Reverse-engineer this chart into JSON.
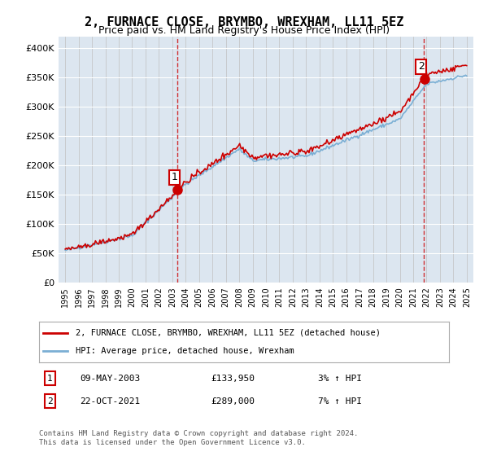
{
  "title": "2, FURNACE CLOSE, BRYMBO, WREXHAM, LL11 5EZ",
  "subtitle": "Price paid vs. HM Land Registry's House Price Index (HPI)",
  "hpi_label": "HPI: Average price, detached house, Wrexham",
  "price_label": "2, FURNACE CLOSE, BRYMBO, WREXHAM, LL11 5EZ (detached house)",
  "transaction1_date": "09-MAY-2003",
  "transaction1_price": 133950,
  "transaction1_hpi": "3% ↑ HPI",
  "transaction2_date": "22-OCT-2021",
  "transaction2_price": 289000,
  "transaction2_hpi": "7% ↑ HPI",
  "background_color": "#dce6f0",
  "plot_bg_color": "#dce6f0",
  "hpi_line_color": "#7bafd4",
  "price_line_color": "#cc0000",
  "dashed_line_color": "#cc0000",
  "ylim_min": 0,
  "ylim_max": 420000,
  "yticks": [
    0,
    50000,
    100000,
    150000,
    200000,
    250000,
    300000,
    350000,
    400000
  ],
  "footer_text": "Contains HM Land Registry data © Crown copyright and database right 2024.\nThis data is licensed under the Open Government Licence v3.0.",
  "legend_box_color": "#cc0000",
  "marker1_year": 2003.35,
  "marker2_year": 2021.8
}
